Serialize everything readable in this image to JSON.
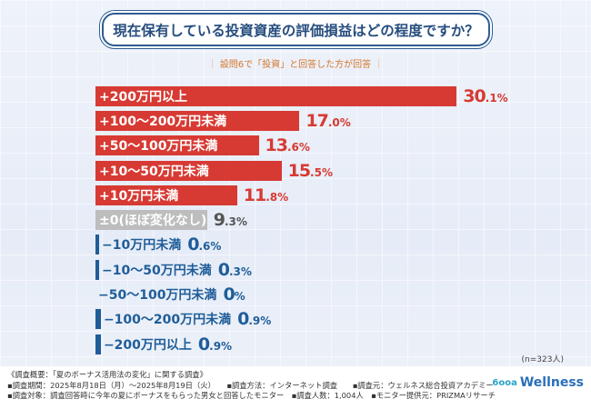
{
  "title": "現在保有している投資資産の評価損益はどの程度ですか？",
  "subtitle": "設問6で「投資」と回答した方が回答",
  "sample": "(n=323人)",
  "colors": {
    "positive": "#d73a33",
    "zero": "#bdbdbd",
    "negative": "#1f5d99"
  },
  "chart_data": {
    "type": "bar",
    "orientation": "horizontal",
    "unit": "%",
    "categories": [
      "+200万円以上",
      "+100～200万円未満",
      "+50～100万円未満",
      "+10～50万円未満",
      "+10万円未満",
      "±0(ほぼ変化なし)",
      "−10万円未満",
      "−10～50万円未満",
      "−50～100万円未満",
      "−100～200万円未満",
      "−200万円以上"
    ],
    "values": [
      30.1,
      17.0,
      13.6,
      15.5,
      11.8,
      9.3,
      0.6,
      0.3,
      0,
      0.9,
      0.9
    ],
    "kinds": [
      "pos",
      "pos",
      "pos",
      "pos",
      "pos",
      "zero",
      "neg",
      "neg",
      "neg",
      "neg",
      "neg"
    ]
  },
  "footer": {
    "line1": "《調査概要：「夏のボーナス活用法の変化」に関する調査》",
    "line2": "▪調査期間：2025年8月18日（月）～2025年8月19日（火）　　▪調査方法：インターネット調査　　▪調査元：ウェルネス総合投資アカデミー",
    "line3": "▪調査対象：調査回答時に今年の夏にボーナスをもらった男女と回答したモニター　▪調査人数：1,004人　▪モニター提供元：PRIZMAリサーチ",
    "logo_mark": "6ooa",
    "logo_text": "Wellness"
  }
}
